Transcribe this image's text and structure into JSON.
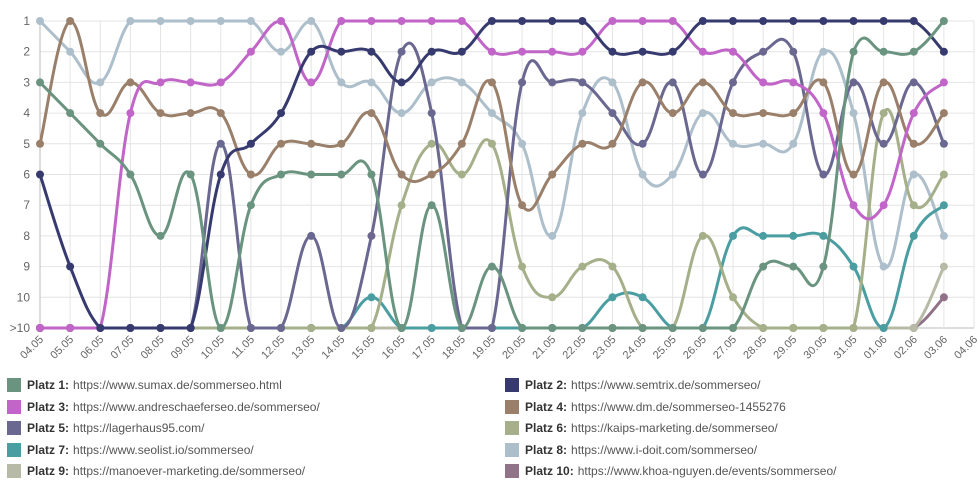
{
  "chart_data": {
    "type": "line",
    "title": "",
    "xlabel": "",
    "ylabel": "",
    "y_tick_labels": [
      "1",
      "2",
      "3",
      "4",
      "5",
      "6",
      "7",
      "8",
      "9",
      "10",
      ">10"
    ],
    "y_reversed": true,
    "ylim": [
      1,
      11
    ],
    "grid": true,
    "legend_position": "bottom",
    "x_axis_end_label": "04.06",
    "categories": [
      "04.05",
      "05.05",
      "06.05",
      "07.05",
      "08.05",
      "09.05",
      "10.05",
      "11.05",
      "12.05",
      "13.05",
      "14.05",
      "15.05",
      "16.05",
      "17.05",
      "18.05",
      "19.05",
      "20.05",
      "21.05",
      "22.05",
      "23.05",
      "24.05",
      "25.05",
      "26.05",
      "27.05",
      "28.05",
      "29.05",
      "30.05",
      "31.05",
      "01.06",
      "02.06",
      "03.06"
    ],
    "series": [
      {
        "label": "Platz 1:",
        "name": "https://www.sumax.de/sommerseo.html",
        "color": "#6a9480",
        "values": [
          3,
          4,
          5,
          6,
          8,
          6,
          11,
          7,
          6,
          6,
          6,
          6,
          11,
          7,
          11,
          9,
          11,
          11,
          11,
          11,
          11,
          11,
          11,
          11,
          9,
          9,
          9,
          2,
          2,
          2,
          1
        ]
      },
      {
        "label": "Platz 2:",
        "name": "https://www.semtrix.de/sommerseo/",
        "color": "#363a6e",
        "values": [
          6,
          9,
          11,
          11,
          11,
          11,
          6,
          5,
          4,
          2,
          2,
          2,
          3,
          2,
          2,
          1,
          1,
          1,
          1,
          2,
          2,
          2,
          1,
          1,
          1,
          1,
          1,
          1,
          1,
          1,
          2
        ]
      },
      {
        "label": "Platz 3:",
        "name": "https://www.andreschaeferseo.de/sommerseo/",
        "color": "#c165c8",
        "values": [
          11,
          11,
          11,
          4,
          3,
          3,
          3,
          2,
          1,
          3,
          1,
          1,
          1,
          1,
          1,
          2,
          2,
          2,
          2,
          1,
          1,
          1,
          2,
          2,
          3,
          3,
          4,
          7,
          7,
          4,
          3
        ]
      },
      {
        "label": "Platz 4:",
        "name": "https://www.dm.de/sommerseo-1455276",
        "color": "#9a806a",
        "values": [
          5,
          1,
          4,
          3,
          4,
          4,
          4,
          6,
          5,
          5,
          5,
          4,
          6,
          6,
          5,
          3,
          7,
          6,
          5,
          5,
          3,
          4,
          3,
          4,
          4,
          4,
          3,
          6,
          3,
          5,
          4
        ]
      },
      {
        "label": "Platz 5:",
        "name": "https://lagerhaus95.com/",
        "color": "#6a6890",
        "values": [
          11,
          11,
          11,
          11,
          11,
          11,
          5,
          11,
          11,
          8,
          11,
          8,
          2,
          4,
          11,
          11,
          3,
          3,
          3,
          4,
          5,
          3,
          6,
          3,
          2,
          2,
          6,
          3,
          5,
          3,
          5
        ]
      },
      {
        "label": "Platz 6:",
        "name": "https://kaips-marketing.de/sommerseo/",
        "color": "#a5b08a",
        "values": [
          11,
          11,
          11,
          11,
          11,
          11,
          11,
          11,
          11,
          11,
          11,
          11,
          7,
          5,
          6,
          5,
          9,
          10,
          9,
          9,
          11,
          11,
          8,
          10,
          11,
          11,
          11,
          11,
          4,
          7,
          6
        ]
      },
      {
        "label": "Platz 7:",
        "name": "https://www.seolist.io/sommerseo/",
        "color": "#4a9ea2",
        "values": [
          11,
          11,
          11,
          11,
          11,
          11,
          11,
          11,
          11,
          11,
          11,
          10,
          11,
          11,
          11,
          11,
          11,
          11,
          11,
          10,
          10,
          11,
          11,
          8,
          8,
          8,
          8,
          9,
          11,
          8,
          7
        ]
      },
      {
        "label": "Platz 8:",
        "name": "https://www.i-doit.com/sommerseo/",
        "color": "#aebfcc",
        "values": [
          1,
          2,
          3,
          1,
          1,
          1,
          1,
          1,
          2,
          1,
          3,
          3,
          4,
          3,
          3,
          4,
          5,
          8,
          4,
          3,
          6,
          6,
          4,
          5,
          5,
          5,
          2,
          4,
          9,
          6,
          8
        ]
      },
      {
        "label": "Platz 9:",
        "name": "https://manoever-marketing.de/sommerseo/",
        "color": "#b7baa6",
        "values": [
          11,
          11,
          11,
          11,
          11,
          11,
          11,
          11,
          11,
          11,
          11,
          11,
          11,
          11,
          11,
          11,
          11,
          11,
          11,
          11,
          11,
          11,
          11,
          11,
          11,
          11,
          11,
          11,
          11,
          11,
          9
        ]
      },
      {
        "label": "Platz 10:",
        "name": "https://www.khoa-nguyen.de/events/sommerseo/",
        "color": "#907388",
        "values": [
          11,
          11,
          11,
          11,
          11,
          11,
          11,
          11,
          11,
          11,
          11,
          11,
          11,
          11,
          11,
          11,
          11,
          11,
          11,
          11,
          11,
          11,
          11,
          11,
          11,
          11,
          11,
          11,
          11,
          11,
          10
        ]
      }
    ]
  }
}
